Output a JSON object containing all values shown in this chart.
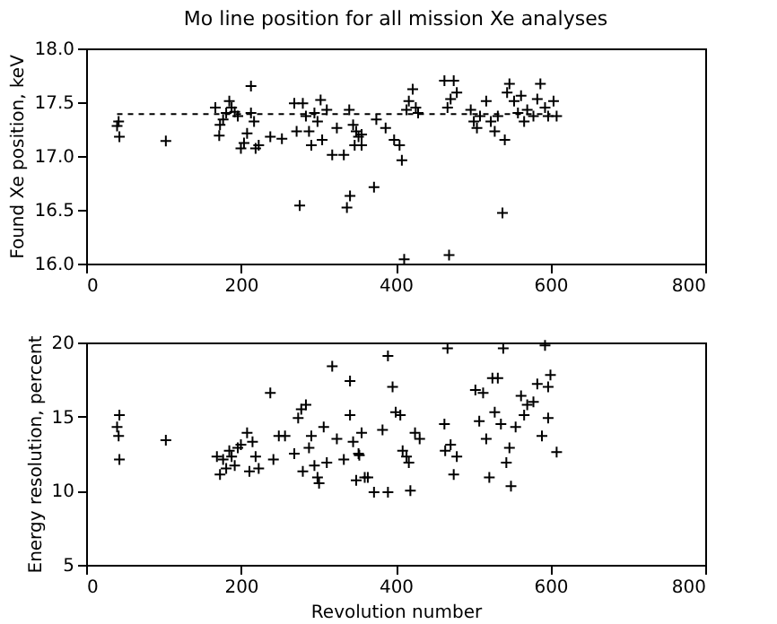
{
  "chart_data": [
    {
      "type": "scatter",
      "title": "Mo line position for all mission Xe analyses",
      "ylabel": "Found Xe position, keV",
      "xlim": [
        0,
        800
      ],
      "xticks": [
        0,
        200,
        400,
        600,
        800
      ],
      "ylim": [
        16,
        18
      ],
      "yticks": [
        {
          "value": 16,
          "label": "16.0"
        },
        {
          "value": 16.5,
          "label": "16.5"
        },
        {
          "value": 17,
          "label": "17.0"
        },
        {
          "value": 17.5,
          "label": "17.5"
        },
        {
          "value": 18,
          "label": "18.0"
        }
      ],
      "grid": false,
      "marker": "cross",
      "series": [
        {
          "color": "#000000",
          "x": [
            40,
            43,
            42,
            103,
            167,
            172,
            173,
            177,
            181,
            185,
            188,
            192,
            196,
            200,
            204,
            208,
            213,
            213,
            217,
            219,
            223,
            238,
            253,
            269,
            272,
            276,
            280,
            284,
            288,
            291,
            295,
            299,
            303,
            305,
            311,
            318,
            324,
            333,
            337,
            340,
            341,
            345,
            347,
            349,
            352,
            356,
            372,
            356,
            375,
            387,
            398,
            405,
            408,
            411,
            414,
            417,
            422,
            426,
            429,
            463,
            467,
            471,
            475,
            479,
            469,
            497,
            501,
            505,
            509,
            517,
            523,
            528,
            532,
            538,
            541,
            544,
            547,
            553,
            558,
            562,
            566,
            570,
            578,
            583,
            587,
            593,
            597,
            604,
            608
          ],
          "values": [
            17.28,
            17.18,
            17.32,
            17.14,
            17.45,
            17.19,
            17.29,
            17.34,
            17.4,
            17.51,
            17.45,
            17.41,
            17.37,
            17.07,
            17.12,
            17.21,
            17.65,
            17.4,
            17.32,
            17.07,
            17.1,
            17.18,
            17.16,
            17.49,
            17.23,
            16.54,
            17.49,
            17.37,
            17.23,
            17.1,
            17.4,
            17.32,
            17.52,
            17.15,
            17.43,
            17.01,
            17.26,
            17.01,
            16.52,
            17.43,
            16.63,
            17.29,
            17.1,
            17.23,
            17.18,
            17.1,
            16.71,
            17.2,
            17.34,
            17.26,
            17.15,
            17.1,
            16.96,
            16.04,
            17.43,
            17.51,
            17.62,
            17.45,
            17.4,
            17.7,
            17.45,
            17.53,
            17.7,
            17.59,
            16.08,
            17.43,
            17.32,
            17.26,
            17.37,
            17.51,
            17.32,
            17.23,
            17.37,
            16.47,
            17.15,
            17.59,
            17.67,
            17.51,
            17.4,
            17.56,
            17.32,
            17.43,
            17.37,
            17.53,
            17.67,
            17.45,
            17.37,
            17.51,
            17.37
          ]
        },
        {
          "type": "line",
          "color": "#000000",
          "line_style": "dashed",
          "marker": "none",
          "x": [
            40,
            600
          ],
          "values": [
            17.39,
            17.39
          ]
        }
      ]
    },
    {
      "type": "scatter",
      "xlabel": "Revolution number",
      "ylabel": "Energy resolution, percent",
      "xlim": [
        0,
        800
      ],
      "xticks": [
        0,
        200,
        400,
        600,
        800
      ],
      "ylim": [
        5,
        20
      ],
      "yticks": [
        5,
        10,
        15,
        20
      ],
      "grid": false,
      "marker": "cross",
      "series": [
        {
          "color": "#000000",
          "x": [
            40,
            43,
            42,
            43,
            103,
            169,
            173,
            177,
            181,
            185,
            188,
            192,
            196,
            200,
            208,
            211,
            215,
            219,
            223,
            238,
            242,
            249,
            257,
            269,
            274,
            278,
            280,
            284,
            288,
            291,
            295,
            299,
            301,
            307,
            311,
            318,
            324,
            333,
            341,
            341,
            345,
            349,
            352,
            356,
            360,
            372,
            353,
            364,
            390,
            383,
            390,
            396,
            400,
            406,
            409,
            414,
            417,
            419,
            425,
            431,
            463,
            464,
            467,
            471,
            475,
            479,
            503,
            508,
            513,
            517,
            521,
            525,
            528,
            532,
            536,
            539,
            543,
            547,
            549,
            555,
            562,
            566,
            570,
            578,
            583,
            589,
            593,
            597,
            600,
            597,
            608
          ],
          "values": [
            14.3,
            15.1,
            13.7,
            12.1,
            13.4,
            12.3,
            11.1,
            12.1,
            11.5,
            12.7,
            12.3,
            11.7,
            12.9,
            13.1,
            13.9,
            11.3,
            13.3,
            12.3,
            11.5,
            16.6,
            12.1,
            13.7,
            13.7,
            12.5,
            14.9,
            15.5,
            11.3,
            15.8,
            12.9,
            13.7,
            11.7,
            10.9,
            10.5,
            14.3,
            11.9,
            18.4,
            13.5,
            12.1,
            17.4,
            15.1,
            13.3,
            10.7,
            12.5,
            13.9,
            10.9,
            9.9,
            12.4,
            10.9,
            9.9,
            14.1,
            19.1,
            17,
            15.3,
            15.1,
            12.7,
            12.3,
            11.9,
            10,
            13.9,
            13.5,
            14.5,
            12.7,
            19.6,
            13.1,
            11.1,
            12.3,
            16.8,
            14.7,
            16.6,
            13.5,
            10.9,
            17.6,
            15.3,
            17.6,
            14.5,
            19.6,
            11.9,
            12.9,
            10.3,
            14.3,
            16.4,
            15.1,
            15.8,
            16,
            17.2,
            13.7,
            19.8,
            17,
            17.8,
            14.9,
            12.6
          ]
        }
      ]
    }
  ]
}
